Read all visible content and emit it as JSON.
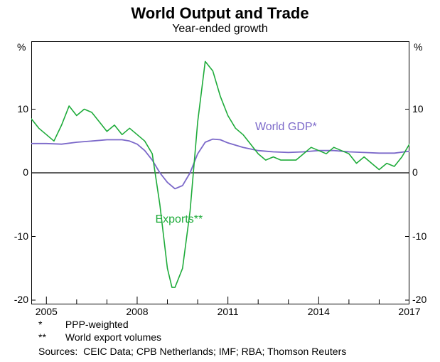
{
  "chart": {
    "type": "line",
    "title": "World Output and Trade",
    "subtitle": "Year-ended growth",
    "background_color": "#ffffff",
    "axis_color": "#000000",
    "grid_color": "#000000",
    "zero_line_color": "#000000",
    "title_fontsize": 22,
    "subtitle_fontsize": 16,
    "label_fontsize": 14,
    "series_label_fontsize": 16,
    "y": {
      "unit": "%",
      "min": -20,
      "max": 20,
      "ticks": [
        -20,
        -10,
        0,
        10
      ],
      "show_top_unit": true
    },
    "x": {
      "min": 2004.5,
      "max": 2017,
      "major_ticks": [
        2005,
        2008,
        2011,
        2014,
        2017
      ],
      "minor_tick_every": 1
    },
    "series": [
      {
        "name": "World GDP*",
        "label_key": "gdp",
        "color": "#7b68c9",
        "line_width": 1.8,
        "label_pos": {
          "x": 2011.9,
          "y": 7.0
        },
        "points": [
          [
            2004.5,
            4.6
          ],
          [
            2005.0,
            4.6
          ],
          [
            2005.5,
            4.5
          ],
          [
            2006.0,
            4.8
          ],
          [
            2006.5,
            5.0
          ],
          [
            2007.0,
            5.2
          ],
          [
            2007.5,
            5.2
          ],
          [
            2007.75,
            5.0
          ],
          [
            2008.0,
            4.5
          ],
          [
            2008.25,
            3.5
          ],
          [
            2008.5,
            2.0
          ],
          [
            2008.75,
            0.0
          ],
          [
            2009.0,
            -1.5
          ],
          [
            2009.25,
            -2.5
          ],
          [
            2009.5,
            -2.0
          ],
          [
            2009.75,
            0.0
          ],
          [
            2010.0,
            3.0
          ],
          [
            2010.25,
            4.8
          ],
          [
            2010.5,
            5.3
          ],
          [
            2010.75,
            5.2
          ],
          [
            2011.0,
            4.7
          ],
          [
            2011.5,
            4.0
          ],
          [
            2012.0,
            3.5
          ],
          [
            2012.5,
            3.3
          ],
          [
            2013.0,
            3.2
          ],
          [
            2013.5,
            3.3
          ],
          [
            2014.0,
            3.5
          ],
          [
            2014.5,
            3.5
          ],
          [
            2015.0,
            3.3
          ],
          [
            2015.5,
            3.2
          ],
          [
            2016.0,
            3.1
          ],
          [
            2016.5,
            3.1
          ],
          [
            2017.0,
            3.4
          ]
        ]
      },
      {
        "name": "Exports**",
        "label_key": "exports",
        "color": "#1eab3a",
        "line_width": 1.6,
        "label_pos": {
          "x": 2008.6,
          "y": -7.5
        },
        "points": [
          [
            2004.5,
            8.5
          ],
          [
            2004.75,
            7.0
          ],
          [
            2005.0,
            6.0
          ],
          [
            2005.25,
            5.0
          ],
          [
            2005.5,
            7.5
          ],
          [
            2005.75,
            10.5
          ],
          [
            2006.0,
            9.0
          ],
          [
            2006.25,
            10.0
          ],
          [
            2006.5,
            9.5
          ],
          [
            2006.75,
            8.0
          ],
          [
            2007.0,
            6.5
          ],
          [
            2007.25,
            7.5
          ],
          [
            2007.5,
            6.0
          ],
          [
            2007.75,
            7.0
          ],
          [
            2008.0,
            6.0
          ],
          [
            2008.25,
            5.0
          ],
          [
            2008.5,
            3.0
          ],
          [
            2008.75,
            -5.0
          ],
          [
            2009.0,
            -15.0
          ],
          [
            2009.15,
            -18.0
          ],
          [
            2009.25,
            -18.0
          ],
          [
            2009.5,
            -15.0
          ],
          [
            2009.75,
            -6.0
          ],
          [
            2010.0,
            8.0
          ],
          [
            2010.25,
            17.5
          ],
          [
            2010.5,
            16.0
          ],
          [
            2010.75,
            12.0
          ],
          [
            2011.0,
            9.0
          ],
          [
            2011.25,
            7.0
          ],
          [
            2011.5,
            6.0
          ],
          [
            2011.75,
            4.5
          ],
          [
            2012.0,
            3.0
          ],
          [
            2012.25,
            2.0
          ],
          [
            2012.5,
            2.5
          ],
          [
            2012.75,
            2.0
          ],
          [
            2013.0,
            2.0
          ],
          [
            2013.25,
            2.0
          ],
          [
            2013.5,
            3.0
          ],
          [
            2013.75,
            4.0
          ],
          [
            2014.0,
            3.5
          ],
          [
            2014.25,
            3.0
          ],
          [
            2014.5,
            4.0
          ],
          [
            2014.75,
            3.5
          ],
          [
            2015.0,
            3.0
          ],
          [
            2015.25,
            1.5
          ],
          [
            2015.5,
            2.5
          ],
          [
            2015.75,
            1.5
          ],
          [
            2016.0,
            0.5
          ],
          [
            2016.25,
            1.5
          ],
          [
            2016.5,
            1.0
          ],
          [
            2016.75,
            2.5
          ],
          [
            2017.0,
            4.5
          ]
        ]
      }
    ],
    "footnotes": [
      {
        "marker": "*",
        "text": "PPP-weighted"
      },
      {
        "marker": "**",
        "text": "World export volumes"
      }
    ],
    "sources_label": "Sources:",
    "sources": "CEIC Data; CPB Netherlands; IMF; RBA; Thomson Reuters"
  },
  "labels": {
    "gdp": "World GDP*",
    "exports": "Exports**",
    "footnote1_marker": "*",
    "footnote1_text": "PPP-weighted",
    "footnote2_marker": "**",
    "footnote2_text": "World export volumes",
    "sources_label": "Sources:",
    "sources_text": "CEIC Data; CPB Netherlands; IMF; RBA; Thomson Reuters",
    "unit": "%"
  }
}
